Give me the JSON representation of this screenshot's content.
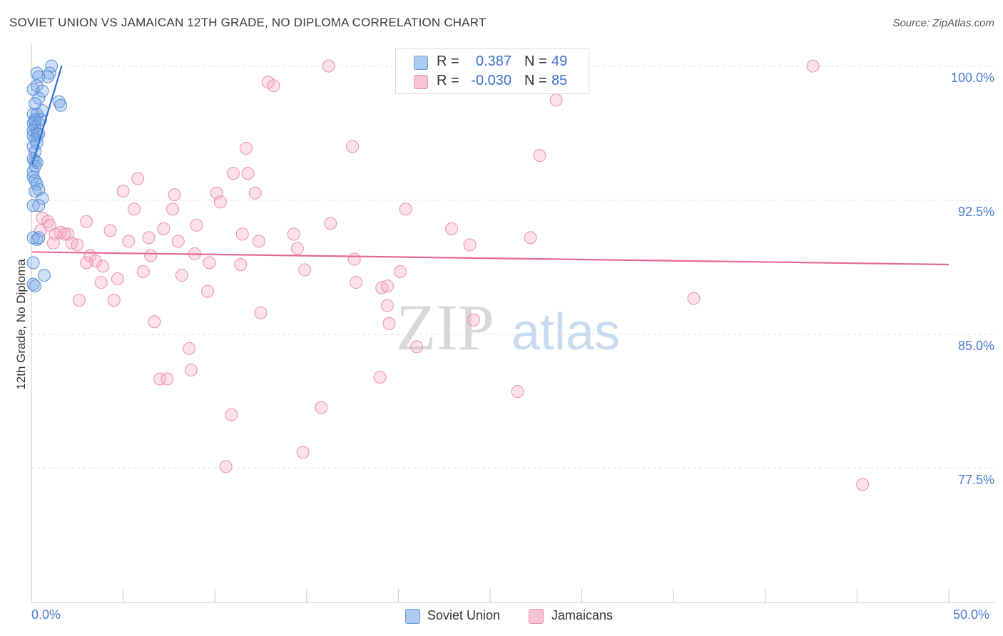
{
  "title": "SOVIET UNION VS JAMAICAN 12TH GRADE, NO DIPLOMA CORRELATION CHART",
  "source": "Source: ZipAtlas.com",
  "watermark": {
    "zip": "ZIP",
    "atlas": "atlas"
  },
  "legend": {
    "r_label": "R =",
    "n_label": "N =",
    "series": [
      {
        "name": "Soviet Union",
        "r": "0.387",
        "n": "49",
        "fill": "#aecbf2",
        "stroke": "#6a9be0"
      },
      {
        "name": "Jamaicans",
        "r": "-0.030",
        "n": "85",
        "fill": "#f8c3d3",
        "stroke": "#ea94b0"
      }
    ]
  },
  "colors": {
    "soviet_point_fill": "rgba(120,165,230,0.35)",
    "soviet_point_stroke": "#5b8ed8",
    "soviet_line": "#2f6fd6",
    "jamaican_point_fill": "rgba(245,170,195,0.35)",
    "jamaican_point_stroke": "#e98fb0",
    "jamaican_line": "#e4679a",
    "grid": "#dcdcdc",
    "axis_text": "#4a7bd0"
  },
  "chart_data": {
    "type": "scatter",
    "title": "SOVIET UNION VS JAMAICAN 12TH GRADE, NO DIPLOMA CORRELATION CHART",
    "xlabel": "",
    "ylabel": "12th Grade, No Diploma",
    "xlim": [
      0,
      50
    ],
    "ylim": [
      70,
      101.3
    ],
    "x_tick_labels": [
      "0.0%",
      "50.0%"
    ],
    "y_ticks": [
      {
        "value": 100,
        "label": "100.0%"
      },
      {
        "value": 92.5,
        "label": "92.5%"
      },
      {
        "value": 85,
        "label": "85.0%"
      },
      {
        "value": 77.5,
        "label": "77.5%"
      }
    ],
    "grid": true,
    "legend_position": "bottom-center",
    "series": [
      {
        "name": "Soviet Union",
        "trend": {
          "x": [
            0.05,
            1.65
          ],
          "y": [
            94.5,
            100.0
          ]
        },
        "points": [
          [
            1.1,
            100.0
          ],
          [
            0.3,
            99.6
          ],
          [
            1.0,
            99.6
          ],
          [
            0.9,
            99.4
          ],
          [
            0.4,
            99.4
          ],
          [
            0.3,
            98.9
          ],
          [
            0.1,
            98.7
          ],
          [
            0.6,
            98.6
          ],
          [
            0.4,
            98.2
          ],
          [
            1.5,
            98.0
          ],
          [
            1.6,
            97.8
          ],
          [
            0.2,
            97.9
          ],
          [
            0.6,
            97.5
          ],
          [
            0.1,
            97.3
          ],
          [
            0.3,
            97.3
          ],
          [
            0.2,
            97.0
          ],
          [
            0.4,
            96.8
          ],
          [
            0.1,
            96.8
          ],
          [
            0.2,
            96.6
          ],
          [
            0.1,
            96.4
          ],
          [
            0.3,
            96.2
          ],
          [
            0.1,
            96.1
          ],
          [
            0.4,
            96.2
          ],
          [
            0.2,
            95.9
          ],
          [
            0.1,
            95.5
          ],
          [
            0.2,
            95.2
          ],
          [
            0.1,
            94.8
          ],
          [
            0.2,
            94.7
          ],
          [
            0.3,
            94.6
          ],
          [
            0.1,
            94.1
          ],
          [
            0.1,
            93.8
          ],
          [
            0.2,
            93.6
          ],
          [
            0.3,
            93.4
          ],
          [
            0.4,
            93.1
          ],
          [
            0.6,
            92.6
          ],
          [
            0.1,
            92.2
          ],
          [
            0.4,
            92.2
          ],
          [
            0.1,
            90.4
          ],
          [
            0.3,
            90.3
          ],
          [
            0.4,
            90.4
          ],
          [
            0.1,
            89.0
          ],
          [
            0.7,
            88.3
          ],
          [
            0.1,
            87.8
          ],
          [
            0.2,
            87.7
          ],
          [
            0.2,
            96.9
          ],
          [
            0.5,
            97.0
          ],
          [
            0.3,
            95.7
          ],
          [
            0.2,
            94.4
          ],
          [
            0.2,
            93.0
          ]
        ]
      },
      {
        "name": "Jamaicans",
        "trend": {
          "x": [
            0.05,
            50.0
          ],
          "y": [
            89.6,
            88.9
          ]
        },
        "points": [
          [
            16.2,
            100.0
          ],
          [
            26.2,
            100.0
          ],
          [
            42.6,
            100.0
          ],
          [
            12.9,
            99.1
          ],
          [
            13.2,
            98.9
          ],
          [
            28.6,
            98.1
          ],
          [
            11.7,
            95.4
          ],
          [
            17.5,
            95.5
          ],
          [
            27.7,
            95.0
          ],
          [
            5.8,
            93.7
          ],
          [
            11.0,
            94.0
          ],
          [
            11.8,
            94.0
          ],
          [
            5.0,
            93.0
          ],
          [
            7.8,
            92.8
          ],
          [
            10.1,
            92.9
          ],
          [
            10.3,
            92.4
          ],
          [
            5.6,
            92.0
          ],
          [
            7.7,
            92.0
          ],
          [
            20.4,
            92.0
          ],
          [
            0.6,
            91.5
          ],
          [
            0.9,
            91.3
          ],
          [
            3.0,
            91.3
          ],
          [
            1.0,
            91.1
          ],
          [
            9.0,
            91.1
          ],
          [
            16.3,
            91.2
          ],
          [
            0.5,
            90.8
          ],
          [
            1.6,
            90.7
          ],
          [
            2.0,
            90.6
          ],
          [
            4.3,
            90.8
          ],
          [
            7.2,
            90.9
          ],
          [
            11.5,
            90.6
          ],
          [
            22.9,
            90.9
          ],
          [
            14.3,
            90.6
          ],
          [
            1.3,
            90.6
          ],
          [
            1.8,
            90.6
          ],
          [
            5.3,
            90.2
          ],
          [
            6.4,
            90.4
          ],
          [
            8.0,
            90.2
          ],
          [
            12.4,
            90.2
          ],
          [
            1.2,
            90.1
          ],
          [
            2.2,
            90.1
          ],
          [
            2.5,
            90.0
          ],
          [
            14.5,
            89.8
          ],
          [
            23.9,
            90.0
          ],
          [
            27.2,
            90.4
          ],
          [
            3.2,
            89.4
          ],
          [
            3.5,
            89.1
          ],
          [
            6.5,
            89.4
          ],
          [
            8.9,
            89.5
          ],
          [
            3.0,
            89.0
          ],
          [
            3.9,
            88.8
          ],
          [
            9.7,
            89.0
          ],
          [
            11.4,
            88.9
          ],
          [
            17.6,
            89.2
          ],
          [
            6.1,
            88.5
          ],
          [
            8.2,
            88.3
          ],
          [
            14.9,
            88.6
          ],
          [
            20.1,
            88.5
          ],
          [
            4.7,
            88.1
          ],
          [
            3.8,
            87.9
          ],
          [
            17.7,
            87.9
          ],
          [
            19.1,
            87.6
          ],
          [
            19.4,
            87.7
          ],
          [
            9.6,
            87.4
          ],
          [
            36.1,
            87.0
          ],
          [
            2.6,
            86.9
          ],
          [
            4.5,
            86.9
          ],
          [
            19.4,
            86.6
          ],
          [
            12.5,
            86.2
          ],
          [
            6.7,
            85.7
          ],
          [
            19.5,
            85.6
          ],
          [
            24.1,
            85.8
          ],
          [
            8.6,
            84.2
          ],
          [
            21.0,
            84.3
          ],
          [
            8.7,
            83.0
          ],
          [
            7.0,
            82.5
          ],
          [
            7.4,
            82.5
          ],
          [
            19.0,
            82.6
          ],
          [
            26.5,
            81.8
          ],
          [
            15.8,
            80.9
          ],
          [
            10.9,
            80.5
          ],
          [
            14.8,
            78.4
          ],
          [
            10.6,
            77.6
          ],
          [
            45.3,
            76.6
          ],
          [
            12.2,
            92.9
          ]
        ]
      }
    ]
  },
  "axis": {
    "y_label": "12th Grade, No Diploma",
    "x_min_label": "0.0%",
    "x_max_label": "50.0%"
  }
}
